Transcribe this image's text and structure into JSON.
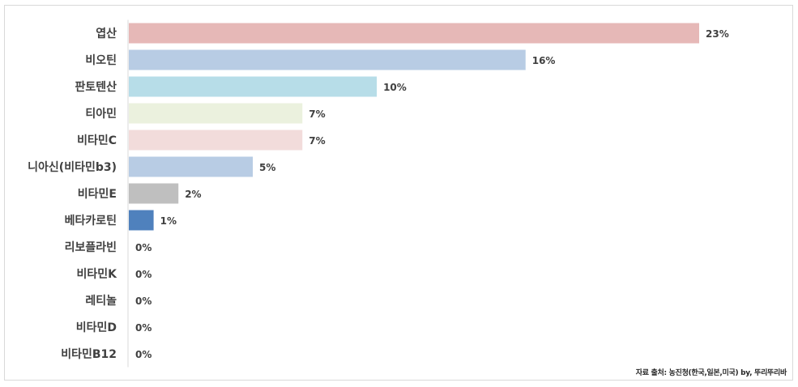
{
  "chart_data": {
    "type": "bar",
    "orientation": "horizontal",
    "categories": [
      "엽산",
      "비오틴",
      "판토텐산",
      "티아민",
      "비타민C",
      "니아신(비타민b3)",
      "비타민E",
      "베타카로틴",
      "리보플라빈",
      "비타민K",
      "레티놀",
      "비타민D",
      "비타민B12"
    ],
    "values": [
      23,
      16,
      10,
      7,
      7,
      5,
      2,
      1,
      0,
      0,
      0,
      0,
      0
    ],
    "value_labels": [
      "23%",
      "16%",
      "10%",
      "7%",
      "7%",
      "5%",
      "2%",
      "1%",
      "0%",
      "0%",
      "0%",
      "0%",
      "0%"
    ],
    "bar_colors": [
      "#e6b8b7",
      "#b8cce4",
      "#b7dde8",
      "#ebf1de",
      "#f2dcdb",
      "#b8cce4",
      "#bfbfbf",
      "#4f81bd",
      "#4f81bd",
      "#4f81bd",
      "#4f81bd",
      "#4f81bd",
      "#4f81bd"
    ],
    "xlim": [
      0,
      23
    ],
    "title": "",
    "xlabel": "",
    "ylabel": "",
    "grid": false,
    "legend": "none"
  },
  "source": "자료 출처: 농진청(한국,일본,미국) by, 뚜리뚜리바"
}
